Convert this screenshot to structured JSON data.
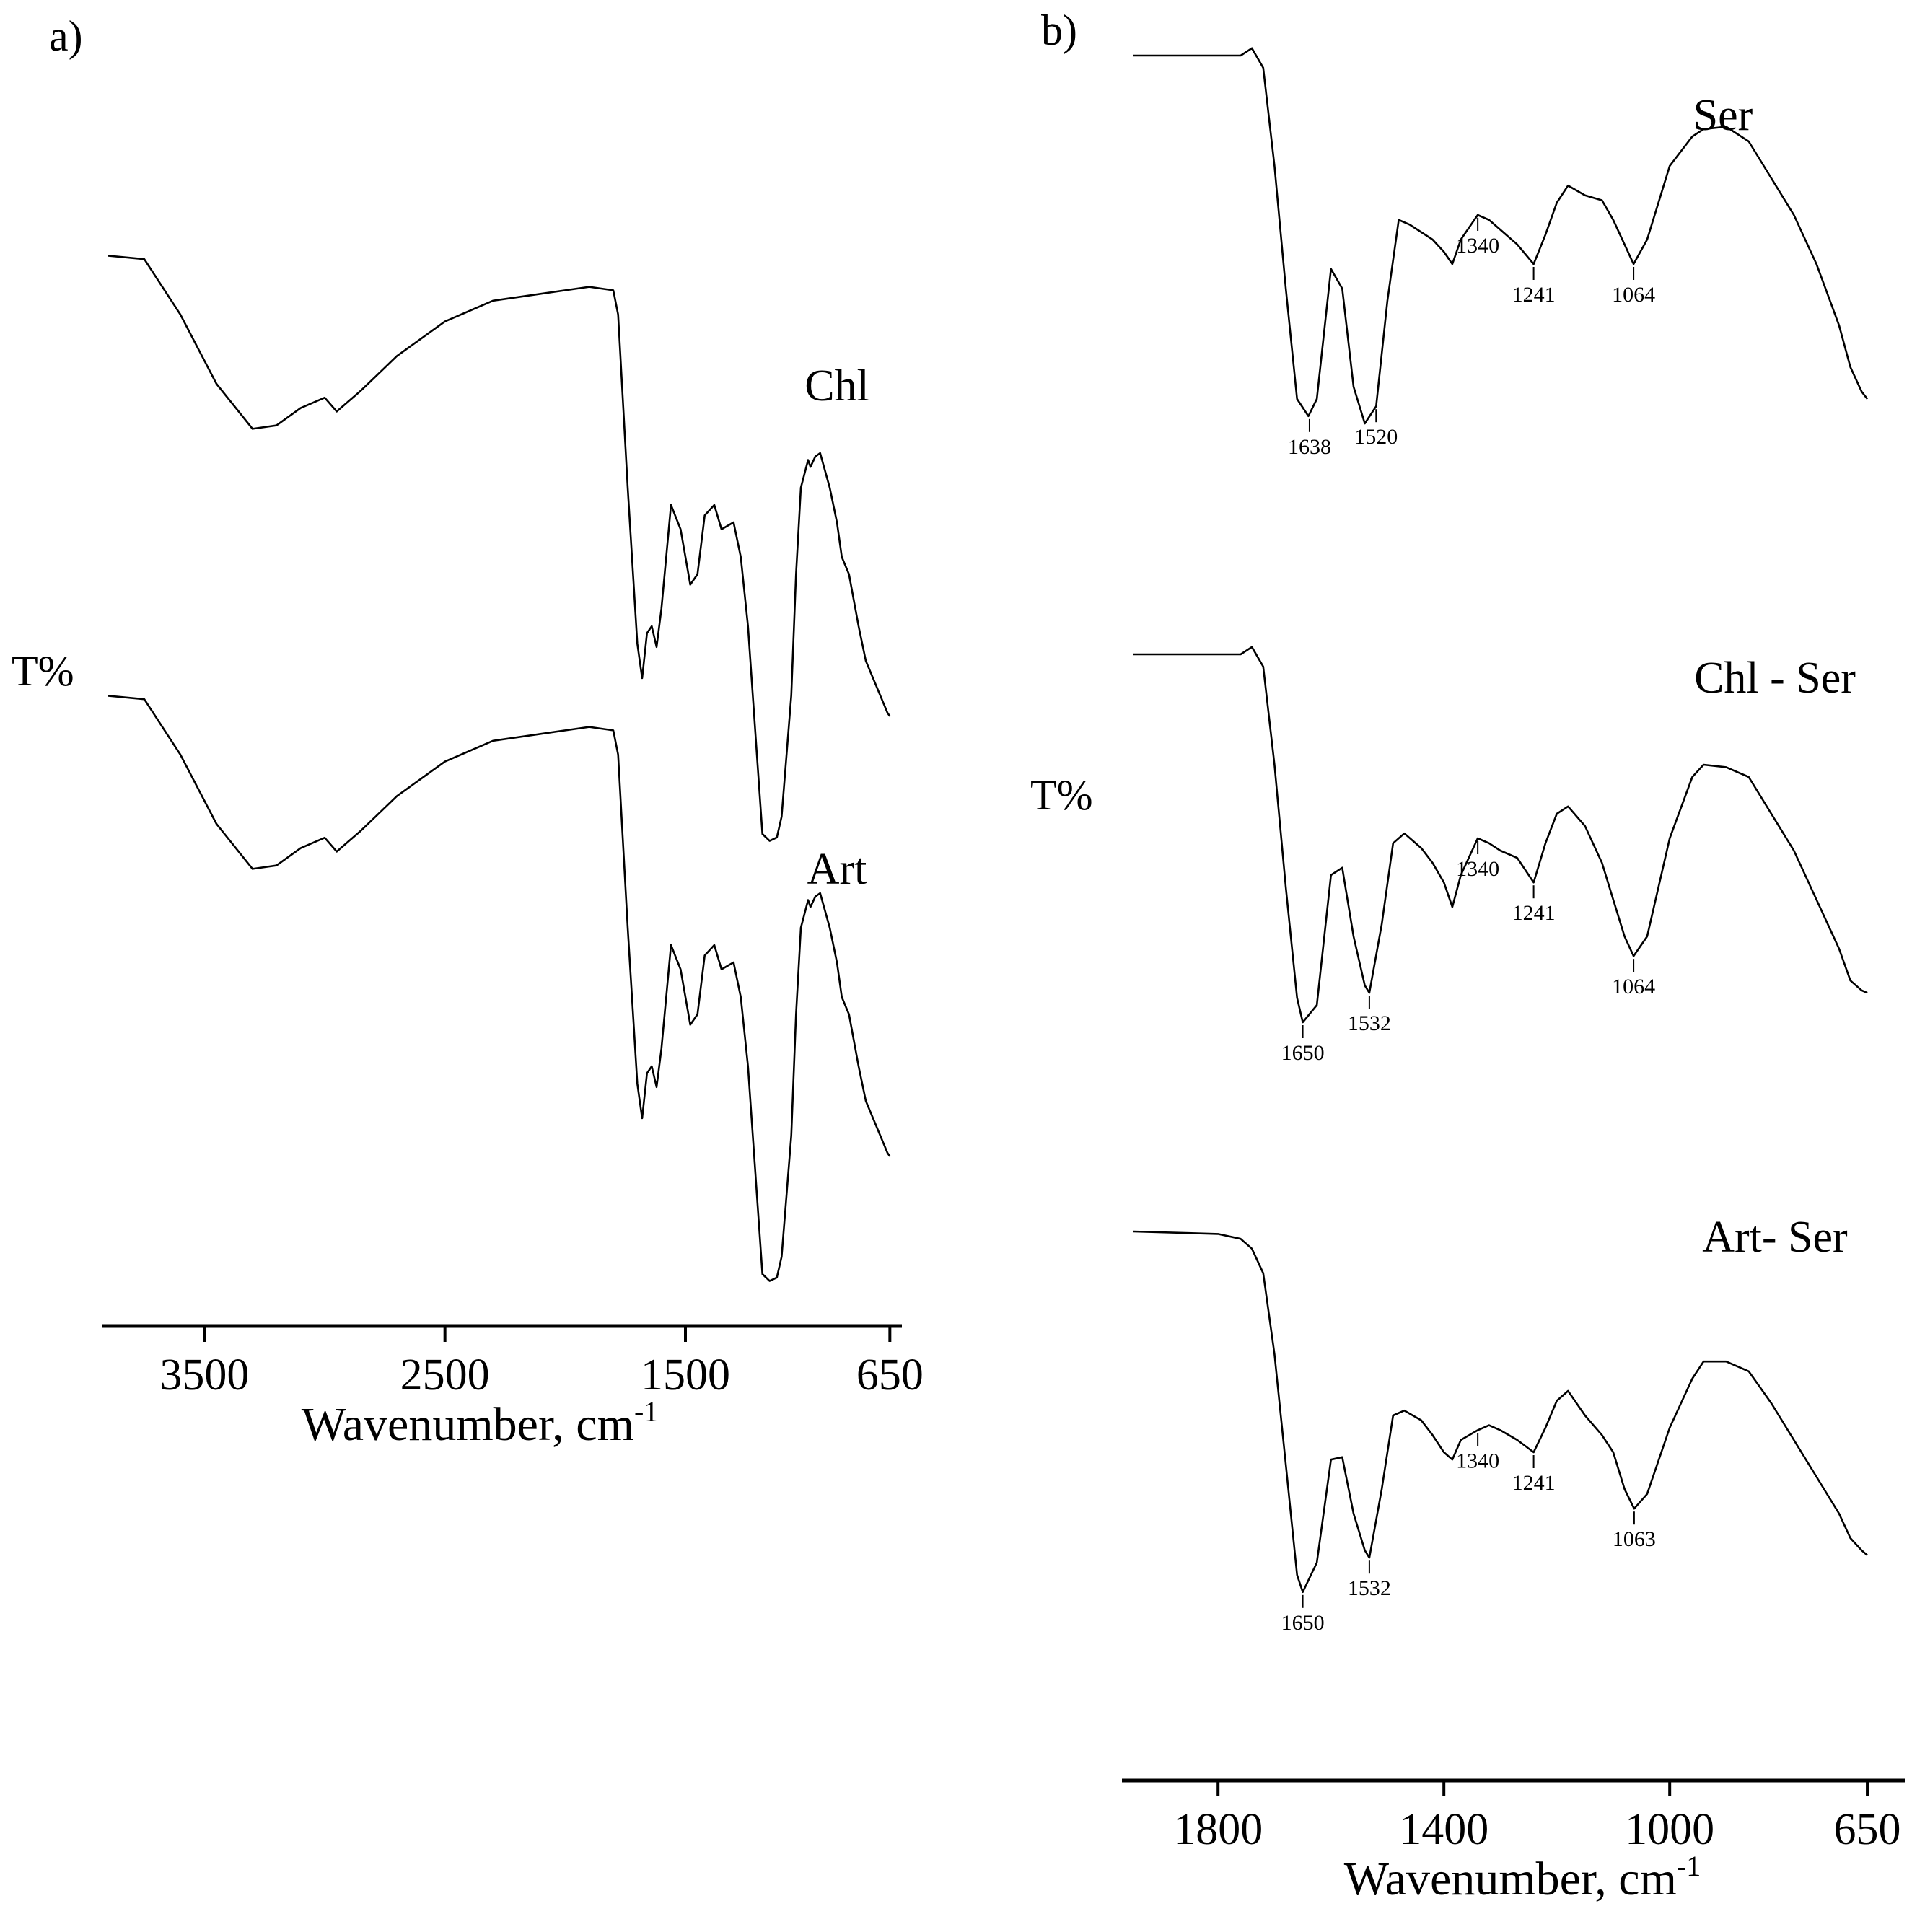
{
  "chart_data": [
    {
      "panel": "a)",
      "type": "line",
      "ylabel": "T%",
      "xlabel_main": "Wavenumber, cm",
      "xlabel_sup": "-1",
      "xlim": [
        3900,
        600
      ],
      "xticks": [
        3500,
        2500,
        1500,
        650
      ],
      "series": [
        {
          "name": "Chl",
          "x": [
            3900,
            3750,
            3600,
            3450,
            3300,
            3200,
            3100,
            3000,
            2950,
            2900,
            2850,
            2700,
            2500,
            2300,
            2100,
            1900,
            1800,
            1780,
            1740,
            1700,
            1680,
            1660,
            1640,
            1620,
            1600,
            1560,
            1520,
            1480,
            1450,
            1420,
            1380,
            1350,
            1300,
            1270,
            1240,
            1200,
            1180,
            1150,
            1120,
            1100,
            1060,
            1040,
            1020,
            990,
            980,
            960,
            940,
            900,
            870,
            850,
            820,
            780,
            750,
            720,
            690,
            660,
            650
          ],
          "y": [
            0.97,
            0.96,
            0.8,
            0.6,
            0.47,
            0.48,
            0.53,
            0.56,
            0.52,
            0.55,
            0.58,
            0.68,
            0.78,
            0.84,
            0.86,
            0.88,
            0.87,
            0.8,
            0.3,
            -0.15,
            -0.25,
            -0.12,
            -0.1,
            -0.16,
            -0.05,
            0.25,
            0.18,
            0.02,
            0.05,
            0.22,
            0.25,
            0.18,
            0.2,
            0.1,
            -0.1,
            -0.5,
            -0.7,
            -0.72,
            -0.71,
            -0.65,
            -0.3,
            0.05,
            0.3,
            0.38,
            0.36,
            0.39,
            0.4,
            0.3,
            0.2,
            0.1,
            0.05,
            -0.1,
            -0.2,
            -0.25,
            -0.3,
            -0.35,
            -0.36
          ]
        },
        {
          "name": "Art",
          "x": [
            3900,
            3750,
            3600,
            3450,
            3300,
            3200,
            3100,
            3000,
            2950,
            2900,
            2850,
            2700,
            2500,
            2300,
            2100,
            1900,
            1800,
            1780,
            1740,
            1700,
            1680,
            1660,
            1640,
            1620,
            1600,
            1560,
            1520,
            1480,
            1450,
            1420,
            1380,
            1350,
            1300,
            1270,
            1240,
            1200,
            1180,
            1150,
            1120,
            1100,
            1060,
            1040,
            1020,
            990,
            980,
            960,
            940,
            900,
            870,
            850,
            820,
            780,
            750,
            720,
            690,
            660,
            650
          ],
          "y": [
            0.97,
            0.96,
            0.8,
            0.6,
            0.47,
            0.48,
            0.53,
            0.56,
            0.52,
            0.55,
            0.58,
            0.68,
            0.78,
            0.84,
            0.86,
            0.88,
            0.87,
            0.8,
            0.3,
            -0.15,
            -0.25,
            -0.12,
            -0.1,
            -0.16,
            -0.05,
            0.25,
            0.18,
            0.02,
            0.05,
            0.22,
            0.25,
            0.18,
            0.2,
            0.1,
            -0.1,
            -0.5,
            -0.7,
            -0.72,
            -0.71,
            -0.65,
            -0.3,
            0.05,
            0.3,
            0.38,
            0.36,
            0.39,
            0.4,
            0.3,
            0.2,
            0.1,
            0.05,
            -0.1,
            -0.2,
            -0.25,
            -0.3,
            -0.35,
            -0.36
          ]
        }
      ]
    },
    {
      "panel": "b)",
      "type": "line",
      "ylabel": "T%",
      "xlabel_main": "Wavenumber, cm",
      "xlabel_sup": "-1",
      "xlim": [
        1960,
        590
      ],
      "xticks": [
        1800,
        1400,
        1000,
        650
      ],
      "series": [
        {
          "name": "Ser",
          "x": [
            1950,
            1800,
            1760,
            1740,
            1720,
            1700,
            1680,
            1660,
            1640,
            1625,
            1600,
            1580,
            1560,
            1540,
            1520,
            1500,
            1480,
            1460,
            1420,
            1400,
            1385,
            1370,
            1340,
            1320,
            1300,
            1270,
            1241,
            1220,
            1200,
            1180,
            1150,
            1120,
            1100,
            1080,
            1064,
            1040,
            1000,
            960,
            940,
            900,
            860,
            820,
            780,
            740,
            700,
            680,
            660,
            650
          ],
          "y": [
            0.95,
            0.95,
            0.95,
            0.98,
            0.9,
            0.5,
            0.0,
            -0.45,
            -0.52,
            -0.45,
            0.08,
            0.0,
            -0.4,
            -0.55,
            -0.48,
            -0.05,
            0.28,
            0.26,
            0.2,
            0.15,
            0.1,
            0.2,
            0.3,
            0.28,
            0.24,
            0.18,
            0.1,
            0.22,
            0.35,
            0.42,
            0.38,
            0.36,
            0.28,
            0.18,
            0.1,
            0.2,
            0.5,
            0.62,
            0.65,
            0.66,
            0.6,
            0.45,
            0.3,
            0.1,
            -0.15,
            -0.32,
            -0.42,
            -0.45
          ]
        },
        {
          "name": "Chl - Ser",
          "x": [
            1950,
            1800,
            1760,
            1740,
            1720,
            1700,
            1680,
            1660,
            1650,
            1625,
            1600,
            1580,
            1560,
            1540,
            1532,
            1510,
            1490,
            1470,
            1440,
            1420,
            1400,
            1385,
            1370,
            1340,
            1320,
            1300,
            1270,
            1241,
            1220,
            1200,
            1180,
            1150,
            1120,
            1100,
            1080,
            1064,
            1040,
            1000,
            960,
            940,
            900,
            860,
            820,
            780,
            740,
            700,
            680,
            660,
            650
          ],
          "y": [
            0.95,
            0.95,
            0.95,
            0.98,
            0.9,
            0.5,
            0.0,
            -0.45,
            -0.55,
            -0.48,
            0.05,
            0.08,
            -0.2,
            -0.4,
            -0.43,
            -0.15,
            0.18,
            0.22,
            0.16,
            0.1,
            0.02,
            -0.08,
            0.05,
            0.2,
            0.18,
            0.15,
            0.12,
            0.02,
            0.18,
            0.3,
            0.33,
            0.25,
            0.1,
            -0.05,
            -0.2,
            -0.28,
            -0.2,
            0.2,
            0.45,
            0.5,
            0.49,
            0.45,
            0.3,
            0.15,
            -0.05,
            -0.25,
            -0.38,
            -0.42,
            -0.43
          ]
        },
        {
          "name": "Art- Ser",
          "x": [
            1950,
            1800,
            1760,
            1740,
            1720,
            1700,
            1680,
            1660,
            1650,
            1625,
            1600,
            1580,
            1560,
            1540,
            1532,
            1510,
            1490,
            1470,
            1440,
            1420,
            1400,
            1385,
            1370,
            1340,
            1320,
            1300,
            1270,
            1241,
            1220,
            1200,
            1180,
            1150,
            1120,
            1100,
            1080,
            1063,
            1040,
            1000,
            960,
            940,
            900,
            860,
            820,
            780,
            740,
            700,
            680,
            660,
            650
          ],
          "y": [
            0.95,
            0.94,
            0.92,
            0.88,
            0.78,
            0.45,
            0.0,
            -0.45,
            -0.52,
            -0.4,
            0.02,
            0.03,
            -0.2,
            -0.35,
            -0.38,
            -0.1,
            0.2,
            0.22,
            0.18,
            0.12,
            0.05,
            0.02,
            0.1,
            0.14,
            0.16,
            0.14,
            0.1,
            0.05,
            0.15,
            0.26,
            0.3,
            0.2,
            0.12,
            0.05,
            -0.1,
            -0.18,
            -0.12,
            0.15,
            0.35,
            0.42,
            0.42,
            0.38,
            0.25,
            0.1,
            -0.05,
            -0.2,
            -0.3,
            -0.35,
            -0.37
          ]
        }
      ],
      "peak_labels": [
        {
          "series": "Ser",
          "values": [
            "1638",
            "1520",
            "1340",
            "1241",
            "1064"
          ]
        },
        {
          "series": "Chl - Ser",
          "values": [
            "1650",
            "1532",
            "1340",
            "1241",
            "1064"
          ]
        },
        {
          "series": "Art- Ser",
          "values": [
            "1650",
            "1532",
            "1340",
            "1241",
            "1063"
          ]
        }
      ]
    }
  ]
}
